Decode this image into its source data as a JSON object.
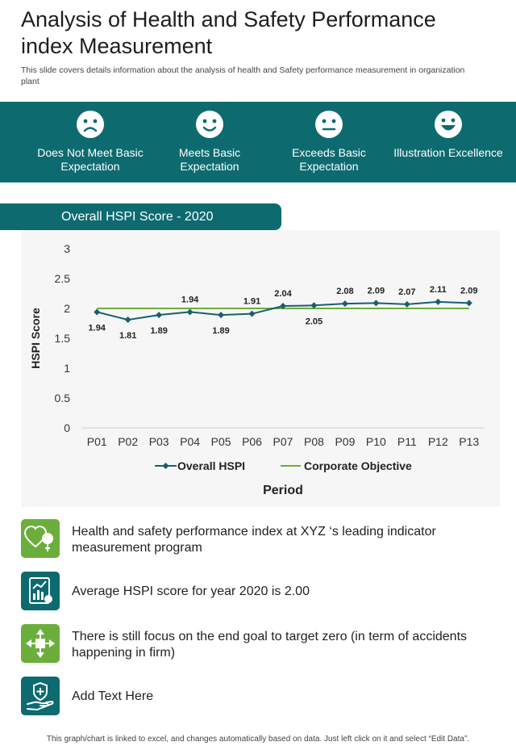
{
  "header": {
    "title": "Analysis of Health and Safety Performance index Measurement",
    "subtitle": "This slide covers details information about the analysis of health and Safety  performance  measurement  in organization plant"
  },
  "ratings": [
    {
      "label": "Does Not Meet Basic Expectation",
      "icon": "sad-face-icon"
    },
    {
      "label": "Meets Basic Expectation",
      "icon": "smile-face-icon"
    },
    {
      "label": "Exceeds Basic Expectation",
      "icon": "neutral-face-icon"
    },
    {
      "label": "Illustration Excellence",
      "icon": "grin-face-icon"
    }
  ],
  "chart_tab": {
    "label": "Overall HSPI Score - 2020"
  },
  "chart_data": {
    "type": "line",
    "title": "Overall HSPI Score - 2020",
    "xlabel": "Period",
    "ylabel": "HSPI Score",
    "categories": [
      "P01",
      "P02",
      "P03",
      "P04",
      "P05",
      "P06",
      "P07",
      "P08",
      "P09",
      "P10",
      "P11",
      "P12",
      "P13"
    ],
    "ylim": [
      0,
      3
    ],
    "yticks": [
      "0",
      "0.5",
      "1",
      "1.5",
      "2",
      "2.5",
      "3"
    ],
    "series": [
      {
        "name": "Overall HSPI",
        "values": [
          1.94,
          1.81,
          1.89,
          1.94,
          1.89,
          1.91,
          2.04,
          2.05,
          2.08,
          2.09,
          2.07,
          2.11,
          2.09
        ],
        "labels": [
          "1.94",
          "1.81",
          "1.89",
          "1.94",
          "1.89",
          "1.91",
          "2.04",
          "2.05",
          "2.08",
          "2.09",
          "2.07",
          "2.11",
          "2.09"
        ],
        "color": "#1a5e70",
        "marker": "diamond"
      },
      {
        "name": "Corporate Objective",
        "values": [
          2,
          2,
          2,
          2,
          2,
          2,
          2,
          2,
          2,
          2,
          2,
          2,
          2
        ],
        "color": "#6cae3c"
      }
    ],
    "legend": "bottom",
    "grid": false
  },
  "bullets": [
    {
      "text": "Health and safety performance index at XYZ ‘s leading indicator measurement program",
      "icon": "heart-leaf-icon",
      "color": "#6cae3c"
    },
    {
      "text": "Average HSPI score for year 2020 is 2.00",
      "icon": "report-chart-icon",
      "color": "#0d6b70"
    },
    {
      "text": "There is still focus on the end goal to target zero (in term of accidents happening in firm)",
      "icon": "arrows-target-icon",
      "color": "#6cae3c"
    },
    {
      "text": "Add Text Here",
      "icon": "hand-shield-icon",
      "color": "#0d6b70"
    }
  ],
  "footer": {
    "note": "This graph/chart is linked to excel,  and changes automatically based on data. Just left click on it and select “Edit Data”."
  }
}
